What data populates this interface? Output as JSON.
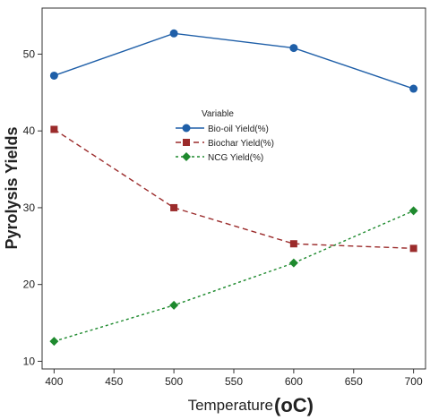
{
  "chart_data": {
    "type": "line",
    "title": "",
    "xlabel": "Temperature",
    "xlabel_unit": "(oC)",
    "ylabel": "Pyrolysis Yields",
    "x": [
      400,
      500,
      600,
      700
    ],
    "xlim": [
      390,
      710
    ],
    "ylim": [
      9,
      56
    ],
    "xticks": [
      400,
      450,
      500,
      550,
      600,
      650,
      700
    ],
    "yticks": [
      10,
      20,
      30,
      40,
      50
    ],
    "grid": false,
    "legend": {
      "title": "Variable",
      "position": "center"
    },
    "series": [
      {
        "name": "Bio-oil Yield(%)",
        "values": [
          47.2,
          52.7,
          50.8,
          45.5
        ],
        "color": "#1f5fa8",
        "marker": "circle",
        "dash": "solid"
      },
      {
        "name": "Biochar Yield(%)",
        "values": [
          40.2,
          30.0,
          25.3,
          24.7
        ],
        "color": "#9b2b2b",
        "marker": "square",
        "dash": "dashed"
      },
      {
        "name": "NCG Yield(%)",
        "values": [
          12.6,
          17.3,
          22.8,
          29.6
        ],
        "color": "#1e8a2e",
        "marker": "diamond",
        "dash": "dotted"
      }
    ]
  }
}
